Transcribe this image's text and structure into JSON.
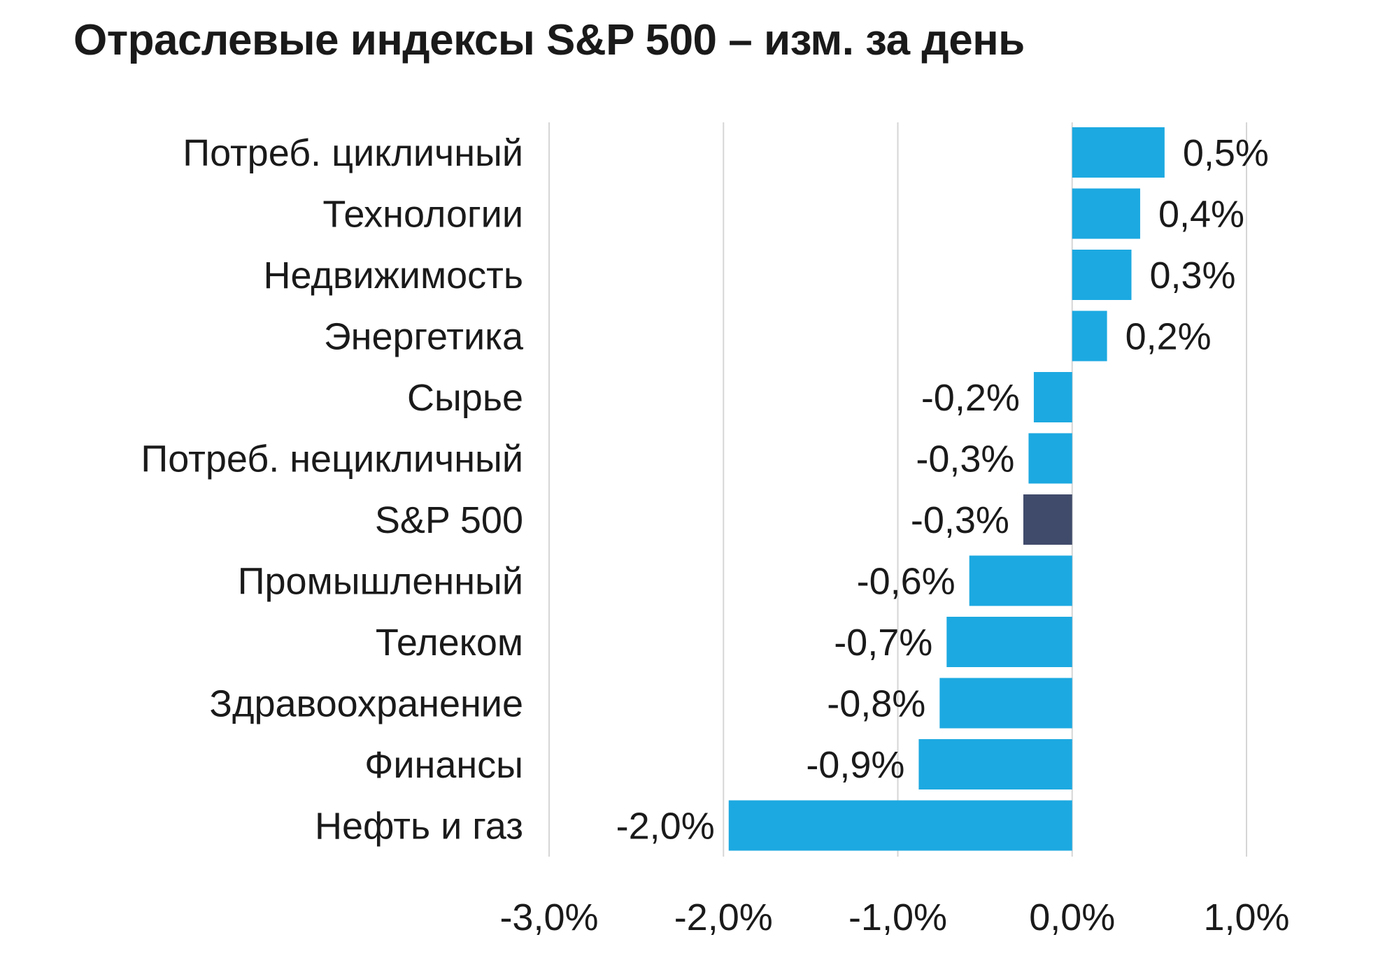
{
  "chart_data": {
    "type": "bar",
    "orientation": "horizontal",
    "title": "Отраслевые индексы S&P 500 – изм. за день",
    "categories": [
      "Потреб. цикличный",
      "Технологии",
      "Недвижимость",
      "Энергетика",
      "Сырье",
      "Потреб. нецикличный",
      "S&P 500",
      "Промышленный",
      "Телеком",
      "Здравоохранение",
      "Финансы",
      "Нефть и газ"
    ],
    "values": [
      0.53,
      0.39,
      0.34,
      0.2,
      -0.22,
      -0.25,
      -0.28,
      -0.59,
      -0.72,
      -0.76,
      -0.88,
      -1.97
    ],
    "value_labels": [
      "0,5%",
      "0,4%",
      "0,3%",
      "0,2%",
      "-0,2%",
      "-0,3%",
      "-0,3%",
      "-0,6%",
      "-0,7%",
      "-0,8%",
      "-0,9%",
      "-2,0%"
    ],
    "xlim": [
      -3.0,
      1.0
    ],
    "xticks": [
      -3.0,
      -2.0,
      -1.0,
      0.0,
      1.0
    ],
    "xtick_labels": [
      "-3,0%",
      "-2,0%",
      "-1,0%",
      "0,0%",
      "1,0%"
    ],
    "xlabel": "",
    "ylabel": "",
    "grid": "vertical",
    "legend": "none",
    "highlight_category": "S&P 500",
    "colors": {
      "bar": "#1CA9E1",
      "highlight": "#404B6B",
      "grid": "#d6d6d6",
      "text": "#1a1a1a"
    }
  }
}
